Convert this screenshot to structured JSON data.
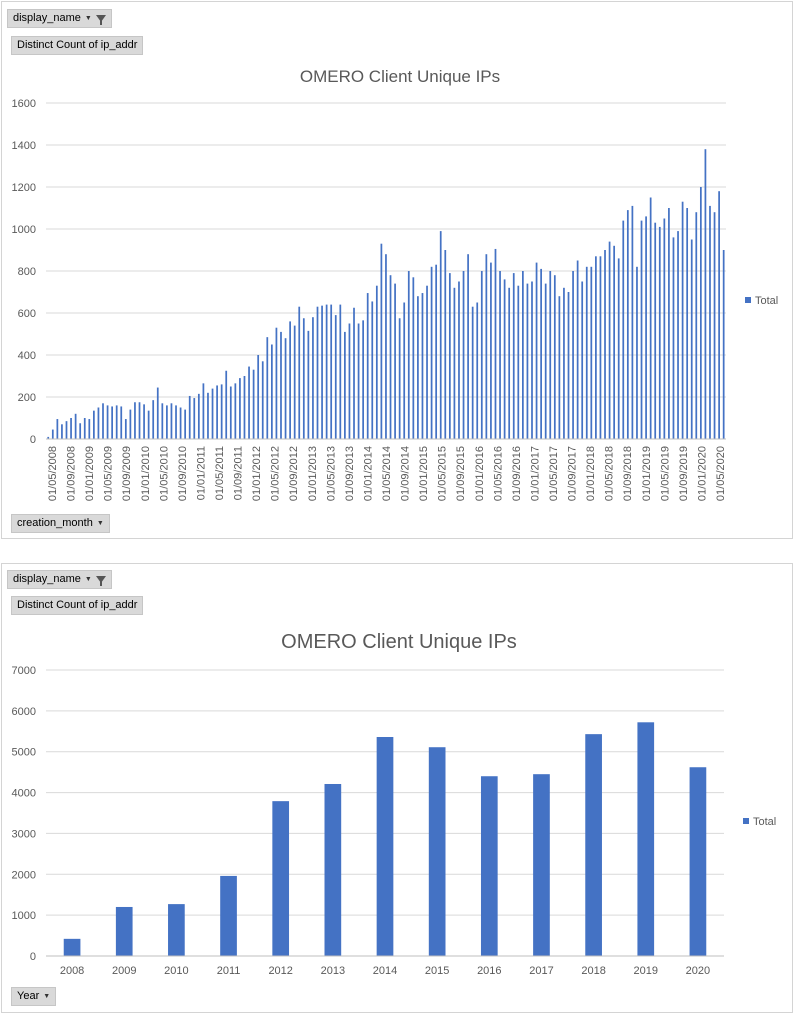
{
  "chart_data": [
    {
      "type": "bar",
      "title": "OMERO  Client Unique IPs",
      "ylim": [
        0,
        1600
      ],
      "yticks": [
        0,
        200,
        400,
        600,
        800,
        1000,
        1200,
        1400,
        1600
      ],
      "x_tick_labels": [
        "01/05/2008",
        "01/09/2008",
        "01/01/2009",
        "01/05/2009",
        "01/09/2009",
        "01/01/2010",
        "01/05/2010",
        "01/09/2010",
        "01/01/2011",
        "01/05/2011",
        "01/09/2011",
        "01/01/2012",
        "01/05/2012",
        "01/09/2012",
        "01/01/2013",
        "01/05/2013",
        "01/09/2013",
        "01/01/2014",
        "01/05/2014",
        "01/09/2014",
        "01/01/2015",
        "01/05/2015",
        "01/09/2015",
        "01/01/2016",
        "01/05/2016",
        "01/09/2016",
        "01/01/2017",
        "01/05/2017",
        "01/09/2017",
        "01/01/2018",
        "01/05/2018",
        "01/09/2018",
        "01/01/2019",
        "01/05/2019",
        "01/09/2019",
        "01/01/2020",
        "01/05/2020"
      ],
      "values": [
        10,
        45,
        95,
        70,
        85,
        100,
        120,
        75,
        100,
        95,
        135,
        150,
        170,
        160,
        155,
        160,
        155,
        95,
        140,
        175,
        175,
        165,
        135,
        185,
        245,
        170,
        160,
        170,
        160,
        150,
        140,
        205,
        195,
        215,
        265,
        220,
        240,
        255,
        260,
        325,
        250,
        265,
        290,
        300,
        345,
        330,
        400,
        370,
        485,
        450,
        530,
        510,
        480,
        560,
        540,
        630,
        575,
        515,
        580,
        630,
        635,
        640,
        640,
        590,
        640,
        510,
        550,
        625,
        550,
        565,
        695,
        655,
        730,
        930,
        880,
        780,
        740,
        575,
        650,
        800,
        770,
        680,
        695,
        730,
        820,
        830,
        990,
        900,
        790,
        720,
        750,
        800,
        880,
        630,
        650,
        800,
        880,
        840,
        905,
        800,
        760,
        720,
        790,
        730,
        800,
        740,
        750,
        840,
        810,
        740,
        800,
        780,
        680,
        720,
        700,
        800,
        850,
        750,
        820,
        820,
        870,
        870,
        900,
        940,
        920,
        860,
        1040,
        1090,
        1110,
        820,
        1040,
        1060,
        1150,
        1030,
        1010,
        1050,
        1100,
        960,
        990,
        1130,
        1100,
        950,
        1080,
        1200,
        1380,
        1110,
        1080,
        1180,
        900
      ],
      "legend": "Total",
      "legend_position": "right",
      "grid": true
    },
    {
      "type": "bar",
      "title": "OMERO  Client Unique IPs",
      "categories": [
        "2008",
        "2009",
        "2010",
        "2011",
        "2012",
        "2013",
        "2014",
        "2015",
        "2016",
        "2017",
        "2018",
        "2019",
        "2020"
      ],
      "values": [
        420,
        1200,
        1270,
        1960,
        3790,
        4210,
        5360,
        5110,
        4400,
        4450,
        5430,
        5720,
        4620
      ],
      "ylim": [
        0,
        7000
      ],
      "yticks": [
        0,
        1000,
        2000,
        3000,
        4000,
        5000,
        6000,
        7000
      ],
      "legend": "Total",
      "legend_position": "right",
      "grid": true
    }
  ],
  "panel1": {
    "filter_label": "display_name",
    "value_label": "Distinct Count of ip_addr",
    "axis_field_label": "creation_month"
  },
  "panel2": {
    "filter_label": "display_name",
    "value_label": "Distinct Count of ip_addr",
    "axis_field_label": "Year"
  },
  "colors": {
    "bar1": "#4472c4",
    "bar2": "#4472c4",
    "grid": "#d9d9d9",
    "text": "#595959"
  }
}
